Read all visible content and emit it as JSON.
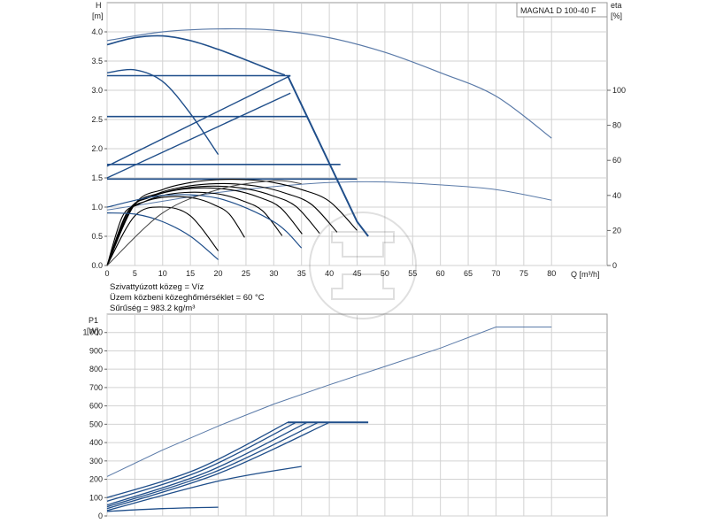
{
  "chart_data": [
    {
      "type": "line",
      "title": "MAGNA1 D 100-40 F",
      "ylabel": "H",
      "ylabel_unit": "[m]",
      "y2label": "eta",
      "y2label_unit": "[%]",
      "xlabel": "Q [m³/h]",
      "xlim": [
        0,
        90
      ],
      "ylim": [
        0,
        4.5
      ],
      "y2lim": [
        0,
        150
      ],
      "xticks": [
        0,
        5,
        10,
        15,
        20,
        25,
        30,
        35,
        40,
        45,
        50,
        55,
        60,
        65,
        70,
        75,
        80
      ],
      "xtick_labels": [
        "0",
        "5",
        "10",
        "15",
        "20",
        "25",
        "30",
        "35",
        "40",
        "45",
        "50",
        "55",
        "60",
        "65",
        "70",
        "75",
        "80"
      ],
      "yticks": [
        0,
        0.5,
        1.0,
        1.5,
        2.0,
        2.5,
        3.0,
        3.5,
        4.0
      ],
      "ytick_labels": [
        "0.0",
        "0.5",
        "1.0",
        "1.5",
        "2.0",
        "2.5",
        "3.0",
        "3.5",
        "4.0"
      ],
      "y2ticks": [
        0,
        20,
        40,
        60,
        80,
        100
      ],
      "y2tick_labels": [
        "0",
        "20",
        "40",
        "60",
        "80",
        "100"
      ],
      "grid": true,
      "medium_info": [
        "Szivattyúzott közeg = Víz",
        "Üzem közbeni közeghőmérséklet = 60 °C",
        "Sűrűség = 983.2 kg/m³"
      ],
      "series": [
        {
          "kind": "twin-pump-max",
          "color": "#5a7aa8",
          "x": [
            0,
            10,
            20,
            30,
            40,
            50,
            60,
            70,
            80
          ],
          "values": [
            3.85,
            4.0,
            4.05,
            4.03,
            3.9,
            3.65,
            3.3,
            2.9,
            2.18
          ]
        },
        {
          "kind": "eta-twin",
          "color": "#5a7aa8",
          "axis": "eta",
          "x": [
            0,
            10,
            20,
            30,
            40,
            50,
            60,
            70,
            80
          ],
          "values": [
            0.95,
            1.1,
            1.25,
            1.35,
            1.42,
            1.43,
            1.38,
            1.3,
            1.12
          ]
        },
        {
          "kind": "max-speed",
          "color": "#1f4e8a",
          "x": [
            0,
            5,
            10,
            15,
            20,
            25,
            30,
            32
          ],
          "values": [
            3.78,
            3.9,
            3.93,
            3.85,
            3.7,
            3.52,
            3.33,
            3.26
          ]
        },
        {
          "kind": "proportional-pressure-limit",
          "color": "#1f4e8a",
          "x": [
            32.5,
            35,
            40,
            45,
            47
          ],
          "values": [
            3.25,
            2.75,
            1.75,
            0.75,
            0.5
          ]
        },
        {
          "kind": "cp-lines",
          "color": "#1f4e8a",
          "levels": [
            3.25,
            2.55,
            1.73,
            1.48
          ],
          "x_end": [
            33,
            36,
            42,
            45
          ]
        },
        {
          "kind": "pp-lines",
          "color": "#1f4e8a",
          "x": [
            0,
            33
          ],
          "values_a": [
            1.7,
            3.25
          ],
          "values_b": [
            1.5,
            2.95
          ]
        },
        {
          "kind": "auto-curves",
          "color": "#000000",
          "x": [
            0,
            5,
            10,
            15,
            20,
            25,
            30,
            35,
            40,
            45
          ],
          "values": [
            0,
            1.05,
            1.3,
            1.42,
            1.47,
            1.47,
            1.42,
            1.3,
            1.1,
            0.6
          ]
        }
      ]
    },
    {
      "type": "line",
      "ylabel": "P1",
      "ylabel_unit": "[W]",
      "xlim": [
        0,
        90
      ],
      "ylim": [
        0,
        1100
      ],
      "yticks": [
        0,
        100,
        200,
        300,
        400,
        500,
        600,
        700,
        800,
        900,
        1000
      ],
      "ytick_labels": [
        "0",
        "100",
        "200",
        "300",
        "400",
        "500",
        "600",
        "700",
        "800",
        "900",
        "1 000"
      ],
      "xticks": [
        0,
        5,
        10,
        15,
        20,
        25,
        30,
        35,
        40,
        45,
        50,
        55,
        60,
        65,
        70,
        75,
        80
      ],
      "grid": true,
      "series": [
        {
          "kind": "twin-power",
          "color": "#5a7aa8",
          "x": [
            0,
            10,
            20,
            30,
            40,
            50,
            60,
            70,
            80
          ],
          "values": [
            215,
            360,
            490,
            610,
            715,
            815,
            915,
            1030,
            1030
          ]
        },
        {
          "kind": "power-lines",
          "color": "#1f4e8a",
          "cap": 510,
          "x": [
            0,
            33,
            47
          ],
          "values": [
            100,
            510,
            510
          ]
        },
        {
          "kind": "power-lines-low",
          "color": "#1f4e8a",
          "x": [
            0,
            20,
            35
          ],
          "values": [
            30,
            190,
            270
          ]
        },
        {
          "kind": "power-min",
          "color": "#1f4e8a",
          "x": [
            0,
            10,
            20
          ],
          "values": [
            25,
            40,
            48
          ]
        }
      ]
    }
  ]
}
